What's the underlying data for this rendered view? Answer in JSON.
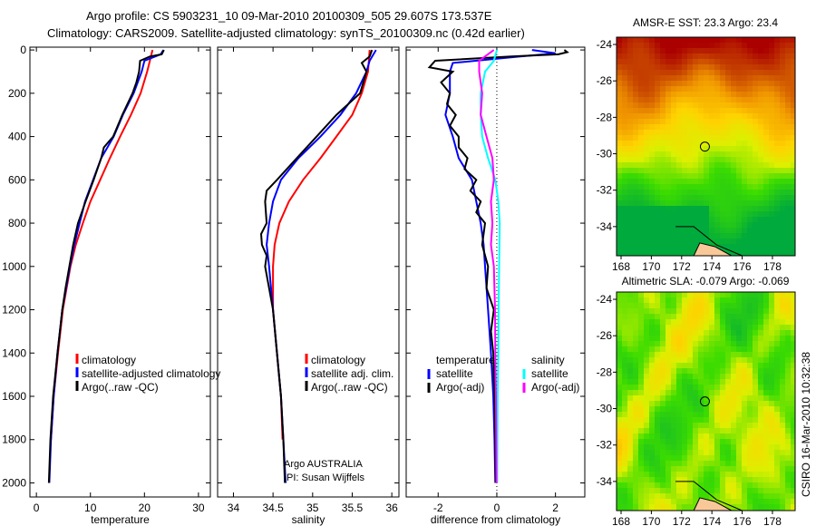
{
  "title_line1": "Argo profile: CS 5903231_10 09-Mar-2010 20100309_505 29.607S 173.537E",
  "title_line2": "Climatology: CARS2009. Satellite-adjusted climatology: synTS_20100309.nc (0.42d earlier)",
  "side_label": "CSIRO 16-Mar-2010 10:32:38",
  "credits": [
    "Argo AUSTRALIA",
    "PI: Susan Wijffels"
  ],
  "colors": {
    "red": "#ff0000",
    "blue": "#0000ff",
    "black": "#000000",
    "cyan": "#00ffff",
    "magenta": "#ff00ff"
  },
  "chart_data": [
    {
      "type": "line",
      "xlabel": "temperature",
      "ylabel": "",
      "xlim": [
        -1.2,
        32.2
      ],
      "ylim": [
        2065,
        -13
      ],
      "xticks": [
        0,
        10,
        20,
        30
      ],
      "yticks": [
        0,
        200,
        400,
        600,
        800,
        1000,
        1200,
        1400,
        1600,
        1800,
        2000
      ],
      "legend": [
        "climatology",
        "satellite-adjusted climatology",
        "Argo(..raw -QC)"
      ],
      "series": [
        {
          "name": "climatology",
          "color": "red",
          "depth": [
            0,
            50,
            100,
            200,
            300,
            400,
            500,
            600,
            700,
            800,
            900,
            1000,
            1200,
            1400,
            1600,
            1800
          ],
          "values": [
            21.5,
            21,
            20.5,
            19.3,
            17.5,
            15.5,
            13.6,
            11.8,
            10,
            8.6,
            7.3,
            6.3,
            4.9,
            4,
            3.2,
            2.7
          ]
        },
        {
          "name": "satellite-adjusted climatology",
          "color": "blue",
          "depth": [
            0,
            20,
            50,
            100,
            200,
            300,
            400,
            500,
            600,
            700,
            800,
            900,
            1000,
            1200,
            1400,
            1600,
            1800,
            2000
          ],
          "values": [
            23.5,
            23,
            20,
            19.5,
            18,
            16,
            14.3,
            12,
            10.5,
            9,
            8,
            7,
            6.2,
            4.8,
            3.9,
            3.2,
            2.7,
            2.4
          ]
        },
        {
          "name": "Argo(..raw -QC)",
          "color": "black",
          "depth": [
            0,
            20,
            30,
            50,
            100,
            150,
            200,
            300,
            400,
            450,
            500,
            600,
            700,
            800,
            900,
            1000,
            1100,
            1200,
            1400,
            1600,
            1800,
            2000
          ],
          "values": [
            23.6,
            23.2,
            21,
            19.2,
            19,
            18.5,
            17.8,
            15.9,
            14.2,
            12.5,
            12,
            10.6,
            9.1,
            7.7,
            6.8,
            6.1,
            5.4,
            4.8,
            3.9,
            3.1,
            2.6,
            2.3
          ]
        }
      ]
    },
    {
      "type": "line",
      "xlabel": "salinity",
      "xlim": [
        33.8,
        36.09
      ],
      "ylim": [
        2065,
        -13
      ],
      "xticks": [
        34,
        34.5,
        35,
        35.5,
        36
      ],
      "yticks": [
        0,
        200,
        400,
        600,
        800,
        1000,
        1200,
        1400,
        1600,
        1800,
        2000
      ],
      "legend": [
        "climatology",
        "satellite adj. clim.",
        "Argo(..raw -QC)"
      ],
      "series": [
        {
          "name": "climatology",
          "color": "red",
          "depth": [
            0,
            100,
            200,
            300,
            400,
            500,
            600,
            700,
            800,
            900,
            1000,
            1200,
            1400,
            1600,
            1800
          ],
          "values": [
            35.72,
            35.7,
            35.62,
            35.5,
            35.3,
            35.1,
            34.88,
            34.7,
            34.58,
            34.52,
            34.5,
            34.5,
            34.55,
            34.6,
            34.62
          ]
        },
        {
          "name": "satellite adj. clim.",
          "color": "blue",
          "depth": [
            0,
            50,
            100,
            200,
            300,
            400,
            500,
            600,
            700,
            800,
            900,
            1000,
            1200,
            1400,
            1600,
            1800,
            2000
          ],
          "values": [
            35.8,
            35.72,
            35.68,
            35.55,
            35.35,
            35.1,
            34.82,
            34.6,
            34.5,
            34.45,
            34.42,
            34.45,
            34.5,
            34.55,
            34.6,
            34.63,
            34.66
          ]
        },
        {
          "name": "Argo(..raw -QC)",
          "color": "black",
          "depth": [
            0,
            30,
            60,
            100,
            200,
            300,
            400,
            500,
            600,
            650,
            700,
            800,
            850,
            900,
            950,
            1000,
            1100,
            1200,
            1400,
            1600,
            1800,
            2000
          ],
          "values": [
            35.75,
            35.72,
            35.62,
            35.68,
            35.6,
            35.3,
            35.05,
            34.8,
            34.55,
            34.42,
            34.4,
            34.42,
            34.35,
            34.36,
            34.42,
            34.4,
            34.45,
            34.5,
            34.55,
            34.6,
            34.63,
            34.65
          ]
        }
      ]
    },
    {
      "type": "line",
      "xlabel": "difference from climatology",
      "xlim": [
        -3.09,
        3.0
      ],
      "ylim": [
        2065,
        -13
      ],
      "xticks": [
        -2,
        0,
        2
      ],
      "yticks": [
        0,
        200,
        400,
        600,
        800,
        1000,
        1200,
        1400,
        1600,
        1800,
        2000
      ],
      "legend_temperature": {
        "header": "temperature",
        "items": [
          "satellite",
          "Argo(-adj)"
        ]
      },
      "legend_salinity": {
        "header": "salinity",
        "items": [
          "satellite",
          "Argo(-adj)"
        ]
      },
      "series": [
        {
          "name": "temperature satellite",
          "color": "blue",
          "depth": [
            0,
            15,
            30,
            60,
            100,
            200,
            300,
            400,
            500,
            600,
            700,
            800,
            900,
            1000,
            1200,
            1400,
            1600,
            1800,
            2000
          ],
          "values": [
            1.2,
            2.0,
            0.8,
            -1.5,
            -1.6,
            -1.6,
            -1.75,
            -1.5,
            -1.3,
            -0.85,
            -0.7,
            -0.55,
            -0.45,
            -0.4,
            -0.3,
            -0.2,
            -0.12,
            -0.08,
            -0.05
          ]
        },
        {
          "name": "temperature Argo(-adj)",
          "color": "black",
          "depth": [
            0,
            10,
            20,
            30,
            50,
            80,
            100,
            150,
            200,
            250,
            300,
            350,
            400,
            450,
            500,
            550,
            600,
            650,
            700,
            750,
            800,
            900,
            1000,
            1100,
            1200,
            1300,
            1400,
            1500,
            1600,
            1800,
            2000
          ],
          "values": [
            2.3,
            2.4,
            2.1,
            0.5,
            -2.1,
            -2.3,
            -1.5,
            -1.9,
            -1.6,
            -1.7,
            -1.4,
            -1.6,
            -1.3,
            -1.3,
            -1.0,
            -1.1,
            -0.7,
            -0.9,
            -0.55,
            -0.7,
            -0.4,
            -0.5,
            -0.3,
            -0.35,
            -0.1,
            -0.2,
            -0.12,
            -0.1,
            -0.08,
            -0.05,
            -0.04
          ]
        },
        {
          "name": "salinity satellite",
          "color": "cyan",
          "depth": [
            0,
            50,
            100,
            200,
            300,
            400,
            500,
            600,
            700,
            800,
            1000,
            1200,
            1400,
            1600,
            1800,
            2000
          ],
          "values": [
            0.0,
            -0.1,
            -0.4,
            -0.55,
            -0.55,
            -0.5,
            -0.3,
            -0.05,
            0.05,
            0.1,
            0.08,
            0.06,
            0.05,
            0.03,
            0.02,
            0.01
          ]
        },
        {
          "name": "salinity Argo(-adj)",
          "color": "magenta",
          "depth": [
            0,
            50,
            100,
            200,
            300,
            400,
            500,
            600,
            700,
            800,
            900,
            1000,
            1200,
            1400,
            1600,
            1800,
            2000
          ],
          "values": [
            -0.1,
            -0.6,
            -0.6,
            -0.5,
            -0.55,
            -0.35,
            -0.15,
            -0.1,
            -0.2,
            -0.15,
            -0.2,
            -0.1,
            -0.06,
            -0.05,
            -0.03,
            -0.02,
            -0.01
          ]
        }
      ]
    },
    {
      "type": "heatmap",
      "title": "AMSR-E SST: 23.3 Argo: 23.4",
      "xticks": [
        168,
        170,
        172,
        174,
        176,
        178
      ],
      "yticks": [
        -24,
        -26,
        -28,
        -30,
        -32,
        -34
      ],
      "lon_range": [
        167.7,
        179.5
      ],
      "lat_range": [
        -35.6,
        -23.6
      ],
      "argo_position": [
        173.537,
        -29.607
      ]
    },
    {
      "type": "heatmap",
      "title": "Altimetric SLA: -0.079 Argo: -0.069",
      "xticks": [
        168,
        170,
        172,
        174,
        176,
        178
      ],
      "yticks": [
        -24,
        -26,
        -28,
        -30,
        -32,
        -34
      ],
      "lon_range": [
        167.7,
        179.5
      ],
      "lat_range": [
        -35.6,
        -23.6
      ],
      "argo_position": [
        173.537,
        -29.607
      ]
    }
  ]
}
